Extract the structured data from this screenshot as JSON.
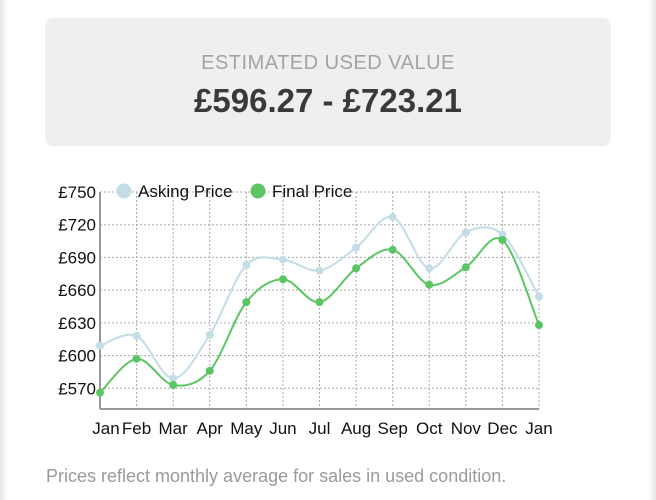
{
  "estimate": {
    "label": "ESTIMATED USED VALUE",
    "value": "£596.27 - £723.21"
  },
  "footer": "Prices reflect monthly average for sales in used condition.",
  "chart_data": {
    "type": "line",
    "categories": [
      "Jan",
      "Feb",
      "Mar",
      "Apr",
      "May",
      "Jun",
      "Jul",
      "Aug",
      "Sep",
      "Oct",
      "Nov",
      "Dec",
      "Jan"
    ],
    "yticks": [
      "£570",
      "£600",
      "£630",
      "£660",
      "£690",
      "£720",
      "£750"
    ],
    "ytick_values": [
      570,
      600,
      630,
      660,
      690,
      720,
      750
    ],
    "ylim": [
      551,
      750
    ],
    "grid": true,
    "legend": "top-left",
    "series": [
      {
        "name": "Asking Price",
        "color": "#c2dde6",
        "values": [
          609,
          618,
          579,
          619,
          683,
          688,
          678,
          699,
          727,
          680,
          713,
          711,
          654
        ]
      },
      {
        "name": "Final Price",
        "color": "#5cc563",
        "values": [
          566,
          597,
          573,
          586,
          649,
          670,
          649,
          680,
          697,
          665,
          681,
          706,
          628
        ]
      }
    ]
  }
}
